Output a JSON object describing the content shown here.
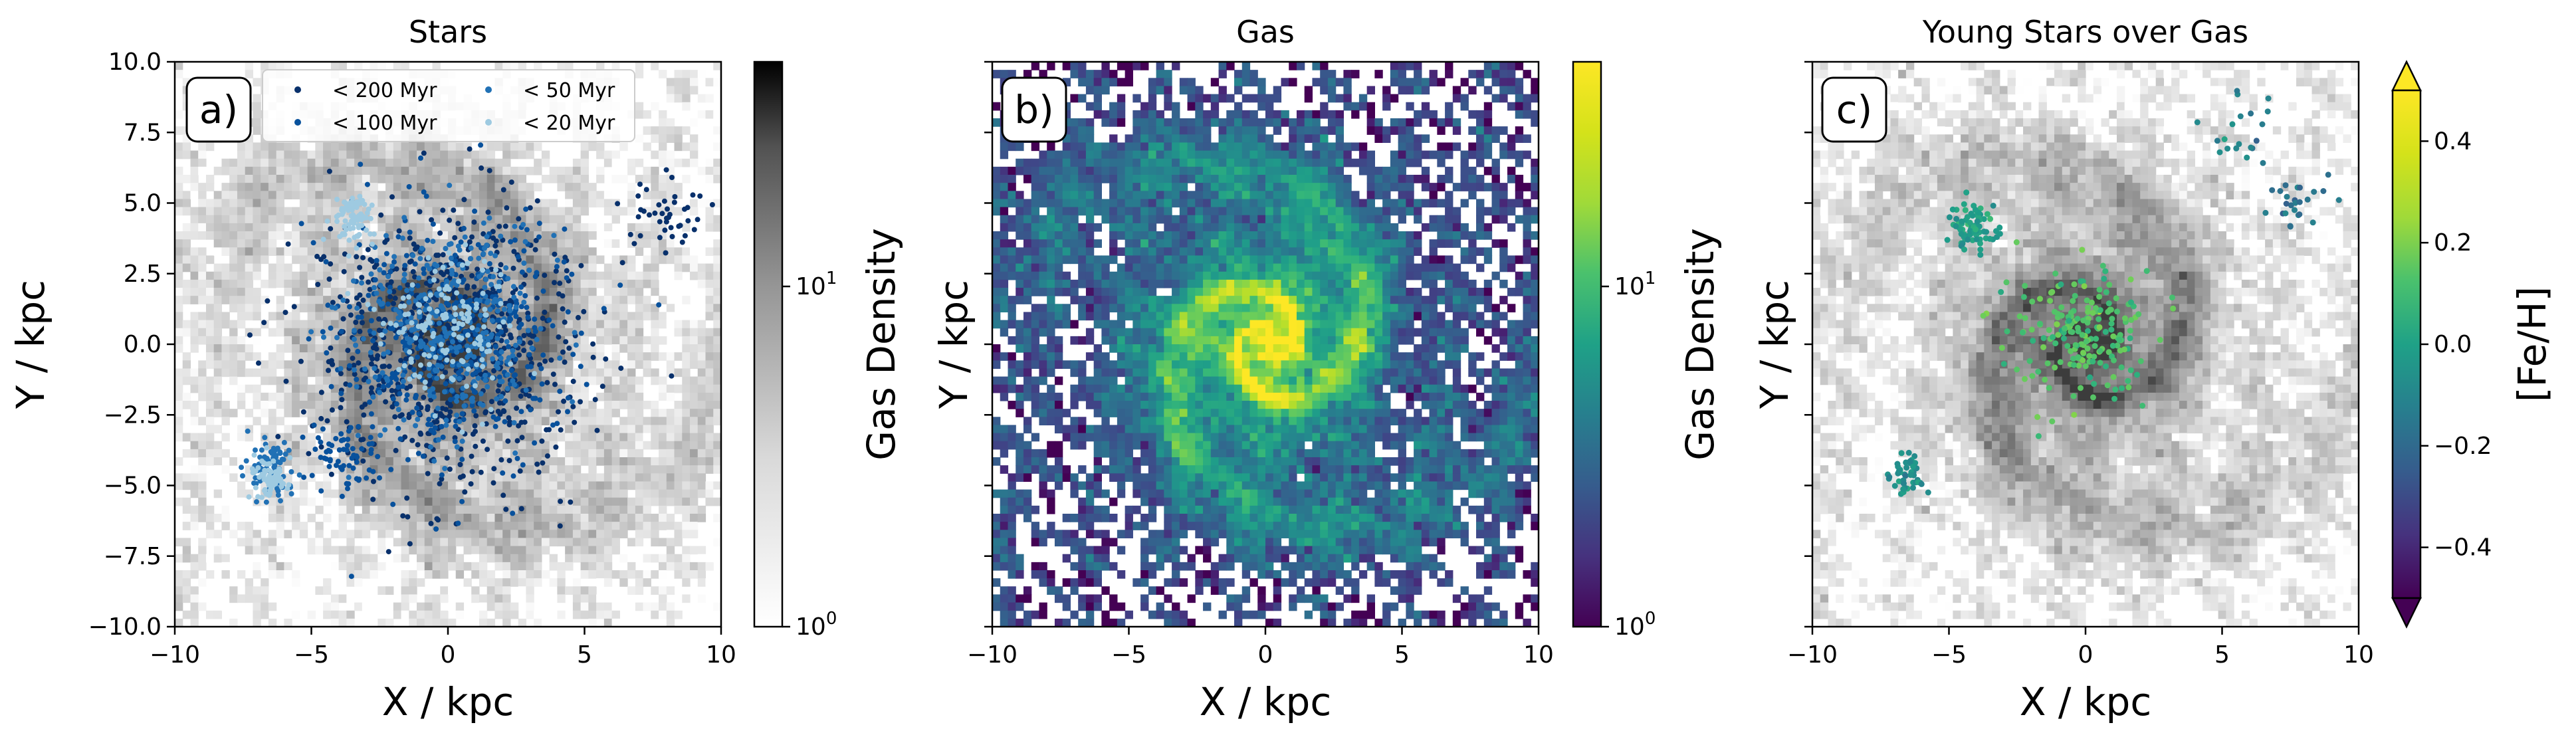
{
  "figure": {
    "panel_count": 3
  },
  "chart_data": [
    {
      "id": "a",
      "type": "heatmap",
      "overlay": "scatter",
      "title": "Stars",
      "panel_label": "a)",
      "xlabel": "X / kpc",
      "ylabel": "Y / kpc",
      "xlim": [
        -10,
        10
      ],
      "ylim": [
        -10,
        10
      ],
      "xticks": [
        "−10",
        "−5",
        "0",
        "5",
        "10"
      ],
      "yticks": [
        "−10.0",
        "−7.5",
        "−5.0",
        "−2.5",
        "0.0",
        "2.5",
        "5.0",
        "7.5",
        "10.0"
      ],
      "xtick_values": [
        -10,
        -5,
        0,
        5,
        10
      ],
      "ytick_values": [
        -10,
        -7.5,
        -5,
        -2.5,
        0,
        2.5,
        5,
        7.5,
        10
      ],
      "background": "gas density map (grey)",
      "legend": {
        "placement": "top",
        "entries": [
          {
            "label": "< 200 Myr",
            "color": "#08306b"
          },
          {
            "label": "< 50 Myr",
            "color": "#2171b5"
          },
          {
            "label": "< 100 Myr",
            "color": "#08519c"
          },
          {
            "label": "< 20 Myr",
            "color": "#9ecae1"
          }
        ]
      },
      "colorbar": {
        "label": "Gas Density",
        "scale": "log",
        "colormap": "Greys",
        "ticks": [
          {
            "base": "10",
            "exp": "1",
            "value": 10
          },
          {
            "base": "10",
            "exp": "0",
            "value": 1
          }
        ],
        "range": [
          1,
          50
        ]
      },
      "series": [
        {
          "name": "< 200 Myr",
          "color": "#08306b",
          "clusters": [
            {
              "cx": 0,
              "cy": 0,
              "r": 5.0,
              "n": 700
            },
            {
              "cx": 8,
              "cy": 4.5,
              "r": 1.5,
              "n": 40
            }
          ]
        },
        {
          "name": "< 100 Myr",
          "color": "#08519c",
          "clusters": [
            {
              "cx": 0,
              "cy": 0,
              "r": 4.5,
              "n": 400
            },
            {
              "cx": -4,
              "cy": -4,
              "r": 1.5,
              "n": 60
            }
          ]
        },
        {
          "name": "< 50 Myr",
          "color": "#2171b5",
          "clusters": [
            {
              "cx": 0,
              "cy": 0.5,
              "r": 3.5,
              "n": 350
            },
            {
              "cx": -6.5,
              "cy": -4.5,
              "r": 1.0,
              "n": 80
            }
          ]
        },
        {
          "name": "< 20 Myr",
          "color": "#9ecae1",
          "clusters": [
            {
              "cx": -3.5,
              "cy": 4.5,
              "r": 0.8,
              "n": 80
            },
            {
              "cx": -6.5,
              "cy": -4.8,
              "r": 0.7,
              "n": 70
            },
            {
              "cx": 0,
              "cy": 0.5,
              "r": 2.5,
              "n": 150
            }
          ]
        }
      ]
    },
    {
      "id": "b",
      "type": "heatmap",
      "title": "Gas",
      "panel_label": "b)",
      "xlabel": "X / kpc",
      "ylabel": "Y / kpc",
      "xlim": [
        -10,
        10
      ],
      "ylim": [
        -10,
        10
      ],
      "xticks": [
        "−10",
        "−5",
        "0",
        "5",
        "10"
      ],
      "xtick_values": [
        -10,
        -5,
        0,
        5,
        10
      ],
      "ytick_values": [
        -10,
        -7.5,
        -5,
        -2.5,
        0,
        2.5,
        5,
        7.5,
        10
      ],
      "colorbar": {
        "label": "Gas Density",
        "scale": "log",
        "colormap": "viridis",
        "ticks": [
          {
            "base": "10",
            "exp": "1",
            "value": 10
          },
          {
            "base": "10",
            "exp": "0",
            "value": 1
          }
        ],
        "range": [
          1,
          50
        ]
      }
    },
    {
      "id": "c",
      "type": "heatmap",
      "overlay": "scatter",
      "title": "Young Stars over Gas",
      "panel_label": "c)",
      "xlabel": "X / kpc",
      "ylabel": "Y / kpc",
      "xlim": [
        -10,
        10
      ],
      "ylim": [
        -10,
        10
      ],
      "xticks": [
        "−10",
        "−5",
        "0",
        "5",
        "10"
      ],
      "xtick_values": [
        -10,
        -5,
        0,
        5,
        10
      ],
      "ytick_values": [
        -10,
        -7.5,
        -5,
        -2.5,
        0,
        2.5,
        5,
        7.5,
        10
      ],
      "background": "gas density map (grey)",
      "colorbar": {
        "label": "[Fe/H]",
        "scale": "linear",
        "colormap": "viridis",
        "extend": "both",
        "range": [
          -0.5,
          0.5
        ],
        "ticks": [
          {
            "label": "0.4",
            "value": 0.4
          },
          {
            "label": "0.2",
            "value": 0.2
          },
          {
            "label": "0.0",
            "value": 0.0
          },
          {
            "label": "−0.2",
            "value": -0.2
          },
          {
            "label": "−0.4",
            "value": -0.4
          }
        ]
      },
      "series": [
        {
          "name": "young stars",
          "clusters": [
            {
              "cx": -4.2,
              "cy": 4.0,
              "r": 0.9,
              "n": 80,
              "feh": 0.05
            },
            {
              "cx": 0,
              "cy": 0.3,
              "r": 2.5,
              "n": 200,
              "feh": 0.22
            },
            {
              "cx": -6.5,
              "cy": -4.7,
              "r": 0.8,
              "n": 45,
              "feh": 0.0
            },
            {
              "cx": 7.8,
              "cy": 5.0,
              "r": 1.0,
              "n": 25,
              "feh": -0.12
            },
            {
              "cx": 5.5,
              "cy": 7.5,
              "r": 1.5,
              "n": 20,
              "feh": -0.05
            }
          ]
        }
      ]
    }
  ]
}
